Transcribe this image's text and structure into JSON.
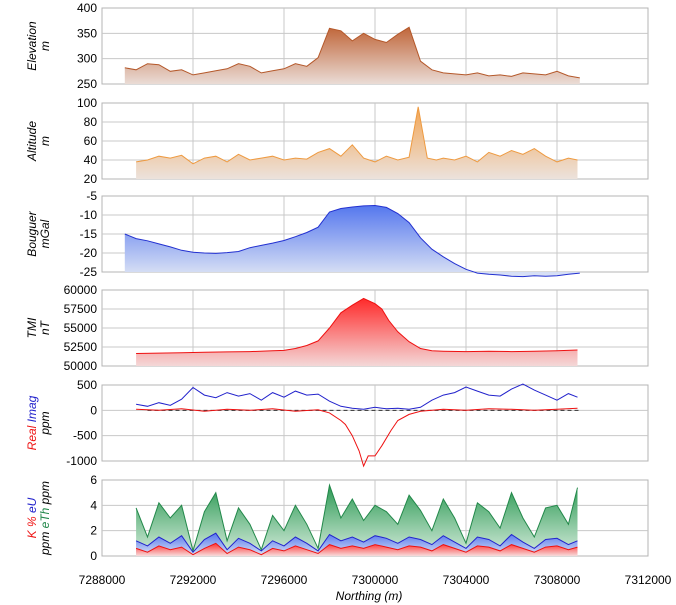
{
  "chart_data": {
    "type": "area",
    "xlabel": "Northing (m)",
    "xlim": [
      7288000,
      7312000
    ],
    "xticks": [
      "7288000",
      "7292000",
      "7296000",
      "7300000",
      "7304000",
      "7308000",
      "7312000"
    ],
    "panels": [
      {
        "key": "elevation",
        "ylabels": [
          {
            "text": "Elevation",
            "color": "#000000"
          },
          {
            "text": "m",
            "color": "#000000"
          }
        ],
        "ylim": [
          250,
          400
        ],
        "yticks": [
          "250",
          "300",
          "350",
          "400"
        ],
        "baseline": 250,
        "series": [
          {
            "color": "#b4582a",
            "fill_top": "#c0663a",
            "fill_bottom": "#eadcd6",
            "x": [
              7289000,
              7289500,
              7290000,
              7290500,
              7291000,
              7291500,
              7292000,
              7292500,
              7293000,
              7293500,
              7294000,
              7294500,
              7295000,
              7295500,
              7296000,
              7296500,
              7297000,
              7297500,
              7298000,
              7298500,
              7299000,
              7299500,
              7300000,
              7300500,
              7301000,
              7301500,
              7302000,
              7302500,
              7303000,
              7303500,
              7304000,
              7304500,
              7305000,
              7305500,
              7306000,
              7306500,
              7307000,
              7307500,
              7308000,
              7308500,
              7309000
            ],
            "values": [
              282,
              278,
              290,
              288,
              275,
              278,
              268,
              272,
              276,
              280,
              290,
              285,
              272,
              276,
              280,
              290,
              285,
              302,
              360,
              355,
              335,
              350,
              338,
              332,
              348,
              362,
              295,
              278,
              272,
              270,
              268,
              272,
              266,
              268,
              265,
              272,
              270,
              268,
              275,
              266,
              262
            ]
          }
        ]
      },
      {
        "key": "altitude",
        "ylabels": [
          {
            "text": "Altitude",
            "color": "#000000"
          },
          {
            "text": "m",
            "color": "#000000"
          }
        ],
        "ylim": [
          20,
          100
        ],
        "yticks": [
          "20",
          "40",
          "60",
          "80",
          "100"
        ],
        "baseline": 20,
        "series": [
          {
            "color": "#ee9a40",
            "fill_top": "#f2a555",
            "fill_bottom": "#ece2dc",
            "x": [
              7289500,
              7290000,
              7290500,
              7291000,
              7291500,
              7292000,
              7292500,
              7293000,
              7293500,
              7294000,
              7294500,
              7295000,
              7295500,
              7296000,
              7296500,
              7297000,
              7297500,
              7298000,
              7298500,
              7299000,
              7299500,
              7300000,
              7300500,
              7301000,
              7301500,
              7301900,
              7302300,
              7302700,
              7303000,
              7303500,
              7304000,
              7304500,
              7305000,
              7305500,
              7306000,
              7306500,
              7307000,
              7307500,
              7308000,
              7308500,
              7308900
            ],
            "values": [
              38,
              40,
              44,
              42,
              45,
              36,
              42,
              44,
              38,
              46,
              40,
              42,
              44,
              40,
              42,
              41,
              48,
              52,
              44,
              56,
              42,
              38,
              44,
              40,
              43,
              96,
              42,
              40,
              42,
              40,
              44,
              38,
              48,
              44,
              50,
              46,
              52,
              44,
              38,
              42,
              40
            ]
          }
        ]
      },
      {
        "key": "bouguer",
        "ylabels": [
          {
            "text": "Bouguer",
            "color": "#000000"
          },
          {
            "text": "mGal",
            "color": "#000000"
          }
        ],
        "ylim": [
          -25,
          -5
        ],
        "yticks": [
          "-25",
          "-20",
          "-15",
          "-10",
          "-5"
        ],
        "baseline": -25,
        "series": [
          {
            "color": "#2230d0",
            "fill_top": "#5577ee",
            "fill_bottom": "#dde4f5",
            "x": [
              7289000,
              7289500,
              7290000,
              7290500,
              7291000,
              7291500,
              7292000,
              7292500,
              7293000,
              7293500,
              7294000,
              7294500,
              7295000,
              7295500,
              7296000,
              7296500,
              7297000,
              7297500,
              7298000,
              7298500,
              7299000,
              7299500,
              7300000,
              7300500,
              7301000,
              7301500,
              7302000,
              7302500,
              7303000,
              7303500,
              7304000,
              7304500,
              7305000,
              7305500,
              7306000,
              7306500,
              7307000,
              7307500,
              7308000,
              7308500,
              7309000
            ],
            "values": [
              -15,
              -16.2,
              -16.8,
              -17.6,
              -18.4,
              -19.3,
              -19.8,
              -20.0,
              -20.1,
              -19.9,
              -19.6,
              -18.6,
              -18.0,
              -17.4,
              -16.7,
              -15.7,
              -14.6,
              -13.2,
              -9.2,
              -8.3,
              -7.9,
              -7.6,
              -7.5,
              -8.0,
              -9.6,
              -12.0,
              -16.0,
              -19.0,
              -21.0,
              -22.8,
              -24.3,
              -25.3,
              -25.6,
              -25.8,
              -26.1,
              -26.2,
              -26.0,
              -26.1,
              -26.0,
              -25.6,
              -25.3
            ]
          }
        ]
      },
      {
        "key": "tmi",
        "ylabels": [
          {
            "text": "TMI",
            "color": "#000000"
          },
          {
            "text": "nT",
            "color": "#000000"
          }
        ],
        "ylim": [
          50000,
          60000
        ],
        "yticks": [
          "50000",
          "52500",
          "55000",
          "57500",
          "60000"
        ],
        "baseline": 50000,
        "series": [
          {
            "color": "#ee1111",
            "fill_top": "#ff2a2a",
            "fill_bottom": "#f4d8d8",
            "x": [
              7289500,
              7290500,
              7291500,
              7292500,
              7293500,
              7294500,
              7295500,
              7296000,
              7296500,
              7297000,
              7297500,
              7298000,
              7298500,
              7299000,
              7299500,
              7300000,
              7300300,
              7300600,
              7301000,
              7301500,
              7302000,
              7302500,
              7303000,
              7304000,
              7305000,
              7306000,
              7307000,
              7308000,
              7308900
            ],
            "values": [
              51650,
              51700,
              51750,
              51800,
              51850,
              51900,
              52000,
              52050,
              52300,
              52700,
              53300,
              55000,
              57000,
              58000,
              58900,
              58200,
              57500,
              56000,
              54500,
              53200,
              52300,
              52000,
              51950,
              51900,
              51950,
              51900,
              51950,
              52000,
              52100
            ]
          }
        ]
      },
      {
        "key": "em",
        "ylabels": [
          {
            "text": "Real",
            "color": "#ee1111"
          },
          {
            "text": "Imag",
            "color": "#2222cc"
          },
          {
            "text": "ppm",
            "color": "#000000"
          }
        ],
        "ylim": [
          -1000,
          500
        ],
        "yticks": [
          "-1000",
          "-500",
          "0",
          "500"
        ],
        "baseline": 0,
        "zero_line": true,
        "series": [
          {
            "name": "Imag",
            "color": "#2222cc",
            "fill": false,
            "x": [
              7289500,
              7290000,
              7290500,
              7291000,
              7291500,
              7292000,
              7292500,
              7293000,
              7293500,
              7294000,
              7294500,
              7295000,
              7295500,
              7296000,
              7296500,
              7297000,
              7297500,
              7298000,
              7298500,
              7299000,
              7299500,
              7300000,
              7300500,
              7301000,
              7301500,
              7302000,
              7302500,
              7303000,
              7303500,
              7304000,
              7304500,
              7305000,
              7305500,
              7306000,
              7306500,
              7307000,
              7307500,
              7308000,
              7308500,
              7308900
            ],
            "values": [
              120,
              80,
              150,
              100,
              220,
              450,
              300,
              250,
              350,
              280,
              330,
              200,
              350,
              260,
              380,
              300,
              320,
              180,
              80,
              40,
              20,
              60,
              30,
              40,
              20,
              60,
              200,
              300,
              350,
              460,
              380,
              300,
              280,
              420,
              520,
              400,
              300,
              200,
              330,
              260
            ]
          },
          {
            "name": "Real",
            "color": "#ee1111",
            "fill": false,
            "x": [
              7289500,
              7290500,
              7291500,
              7292500,
              7293500,
              7294500,
              7295500,
              7296500,
              7297500,
              7298000,
              7298500,
              7298700,
              7299000,
              7299300,
              7299500,
              7299700,
              7300000,
              7300300,
              7300700,
              7301000,
              7301500,
              7302000,
              7303000,
              7304000,
              7305000,
              7306000,
              7307000,
              7308000,
              7308900
            ],
            "values": [
              20,
              0,
              30,
              -20,
              20,
              0,
              30,
              -20,
              10,
              -50,
              -200,
              -280,
              -500,
              -800,
              -1100,
              -900,
              -900,
              -700,
              -400,
              -200,
              -80,
              -20,
              20,
              0,
              30,
              20,
              0,
              20,
              40
            ]
          }
        ]
      },
      {
        "key": "radiometrics",
        "ylabels": [
          {
            "text": "K",
            "color": "#ee1111"
          },
          {
            "text": "%",
            "color": "#ee1111"
          },
          {
            "text": "eU",
            "color": "#2222cc"
          },
          {
            "text": "ppm",
            "color": "#000000"
          },
          {
            "text": "eTh",
            "color": "#22884a"
          },
          {
            "text": "ppm",
            "color": "#000000"
          }
        ],
        "ylim": [
          0,
          6
        ],
        "yticks": [
          "0",
          "2",
          "4",
          "6"
        ],
        "baseline": 0,
        "series": [
          {
            "name": "eTh",
            "color": "#22884a",
            "fill_top": "#2d9a55",
            "fill_bottom": "#d6ecdc",
            "x": [
              7289500,
              7290000,
              7290500,
              7291000,
              7291500,
              7292000,
              7292500,
              7293000,
              7293500,
              7294000,
              7294500,
              7295000,
              7295500,
              7296000,
              7296500,
              7297000,
              7297500,
              7298000,
              7298500,
              7299000,
              7299500,
              7300000,
              7300500,
              7301000,
              7301500,
              7302000,
              7302500,
              7303000,
              7303500,
              7304000,
              7304500,
              7305000,
              7305500,
              7306000,
              7306500,
              7307000,
              7307500,
              7308000,
              7308500,
              7308900
            ],
            "values": [
              3.8,
              1.5,
              4.2,
              3.0,
              4.0,
              0.4,
              3.5,
              5.0,
              1.2,
              3.8,
              2.5,
              0.5,
              3.2,
              2.0,
              4.0,
              2.5,
              0.6,
              5.6,
              3.0,
              4.5,
              2.8,
              4.0,
              3.5,
              2.5,
              4.8,
              3.6,
              2.0,
              4.5,
              3.0,
              1.0,
              4.2,
              3.5,
              2.2,
              5.0,
              3.0,
              1.5,
              3.8,
              4.0,
              2.5,
              5.4
            ]
          },
          {
            "name": "eU",
            "color": "#2222cc",
            "fill_top": "#5577ee",
            "fill_bottom": "#dde4f5",
            "x": [
              7289500,
              7290000,
              7290500,
              7291000,
              7291500,
              7292000,
              7292500,
              7293000,
              7293500,
              7294000,
              7294500,
              7295000,
              7295500,
              7296000,
              7296500,
              7297000,
              7297500,
              7298000,
              7298500,
              7299000,
              7299500,
              7300000,
              7300500,
              7301000,
              7301500,
              7302000,
              7302500,
              7303000,
              7303500,
              7304000,
              7304500,
              7305000,
              7305500,
              7306000,
              7306500,
              7307000,
              7307500,
              7308000,
              7308500,
              7308900
            ],
            "values": [
              1.2,
              0.8,
              1.5,
              1.0,
              1.6,
              0.3,
              1.3,
              1.8,
              0.5,
              1.4,
              1.0,
              0.4,
              1.2,
              0.8,
              1.5,
              1.0,
              0.4,
              1.7,
              1.2,
              1.5,
              1.1,
              1.6,
              1.4,
              1.0,
              1.5,
              1.3,
              0.9,
              1.6,
              1.1,
              0.6,
              1.5,
              1.3,
              0.8,
              1.7,
              1.1,
              0.6,
              1.3,
              1.4,
              0.9,
              1.2
            ]
          },
          {
            "name": "K",
            "color": "#ee1111",
            "fill_top": "#ff3030",
            "fill_bottom": "#f6dcdc",
            "x": [
              7289500,
              7290000,
              7290500,
              7291000,
              7291500,
              7292000,
              7292500,
              7293000,
              7293500,
              7294000,
              7294500,
              7295000,
              7295500,
              7296000,
              7296500,
              7297000,
              7297500,
              7298000,
              7298500,
              7299000,
              7299500,
              7300000,
              7300500,
              7301000,
              7301500,
              7302000,
              7302500,
              7303000,
              7303500,
              7304000,
              7304500,
              7305000,
              7305500,
              7306000,
              7306500,
              7307000,
              7307500,
              7308000,
              7308500,
              7308900
            ],
            "values": [
              0.6,
              0.3,
              0.8,
              0.5,
              0.7,
              0.1,
              0.6,
              1.0,
              0.2,
              0.7,
              0.5,
              0.1,
              0.6,
              0.4,
              0.8,
              0.5,
              0.2,
              0.9,
              0.6,
              0.8,
              0.6,
              0.9,
              0.7,
              0.5,
              0.8,
              0.7,
              0.4,
              0.9,
              0.6,
              0.3,
              0.8,
              0.7,
              0.4,
              0.9,
              0.6,
              0.3,
              0.7,
              0.8,
              0.5,
              0.7
            ]
          }
        ]
      }
    ]
  }
}
